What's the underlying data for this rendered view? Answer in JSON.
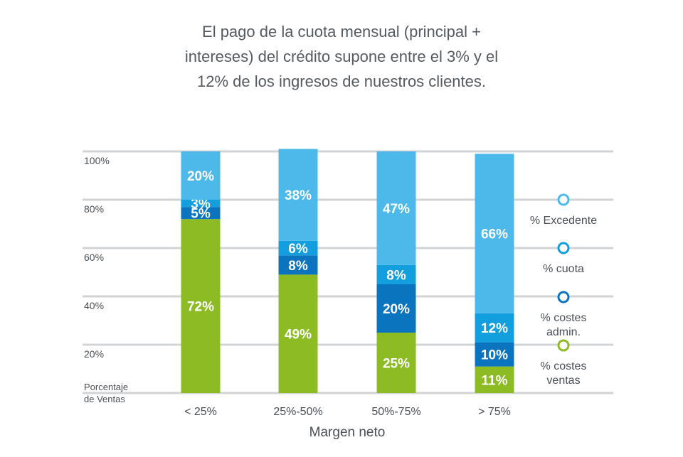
{
  "title_lines": [
    "El pago de la cuota mensual (principal +",
    "intereses) del crédito supone entre el 3% y el",
    "12% de los ingresos de nuestros clientes."
  ],
  "chart_data": {
    "type": "bar",
    "stacked": true,
    "categories": [
      "< 25%",
      "25%-50%",
      "50%-75%",
      "> 75%"
    ],
    "xlabel": "Margen neto",
    "ylabel": "Porcentaje de Ventas",
    "ylabel_lines": [
      "Porcentaje",
      "de Ventas"
    ],
    "ylim": [
      0,
      100
    ],
    "yticks": [
      20,
      40,
      60,
      80,
      100
    ],
    "ytick_labels": [
      "20%",
      "40%",
      "60%",
      "80%",
      "100%"
    ],
    "grid": true,
    "legend_position": "right",
    "series": [
      {
        "name": "% costes ventas",
        "legend_lines": [
          "% costes",
          "ventas"
        ],
        "color": "#8cbb24",
        "values": [
          72,
          49,
          25,
          11
        ],
        "labels": [
          "72%",
          "49%",
          "25%",
          "11%"
        ]
      },
      {
        "name": "% costes admin.",
        "legend_lines": [
          "% costes",
          "admin."
        ],
        "color": "#0b74bf",
        "values": [
          5,
          8,
          20,
          10
        ],
        "labels": [
          "5%",
          "8%",
          "20%",
          "10%"
        ]
      },
      {
        "name": "% cuota",
        "legend_lines": [
          "% cuota"
        ],
        "color": "#139fdd",
        "values": [
          3,
          6,
          8,
          12
        ],
        "labels": [
          "3%",
          "6%",
          "8%",
          "12%"
        ]
      },
      {
        "name": "% Excedente",
        "legend_lines": [
          "% Excedente"
        ],
        "color": "#4db8ea",
        "values": [
          20,
          38,
          47,
          66
        ],
        "labels": [
          "20%",
          "38%",
          "47%",
          "66%"
        ]
      }
    ]
  }
}
